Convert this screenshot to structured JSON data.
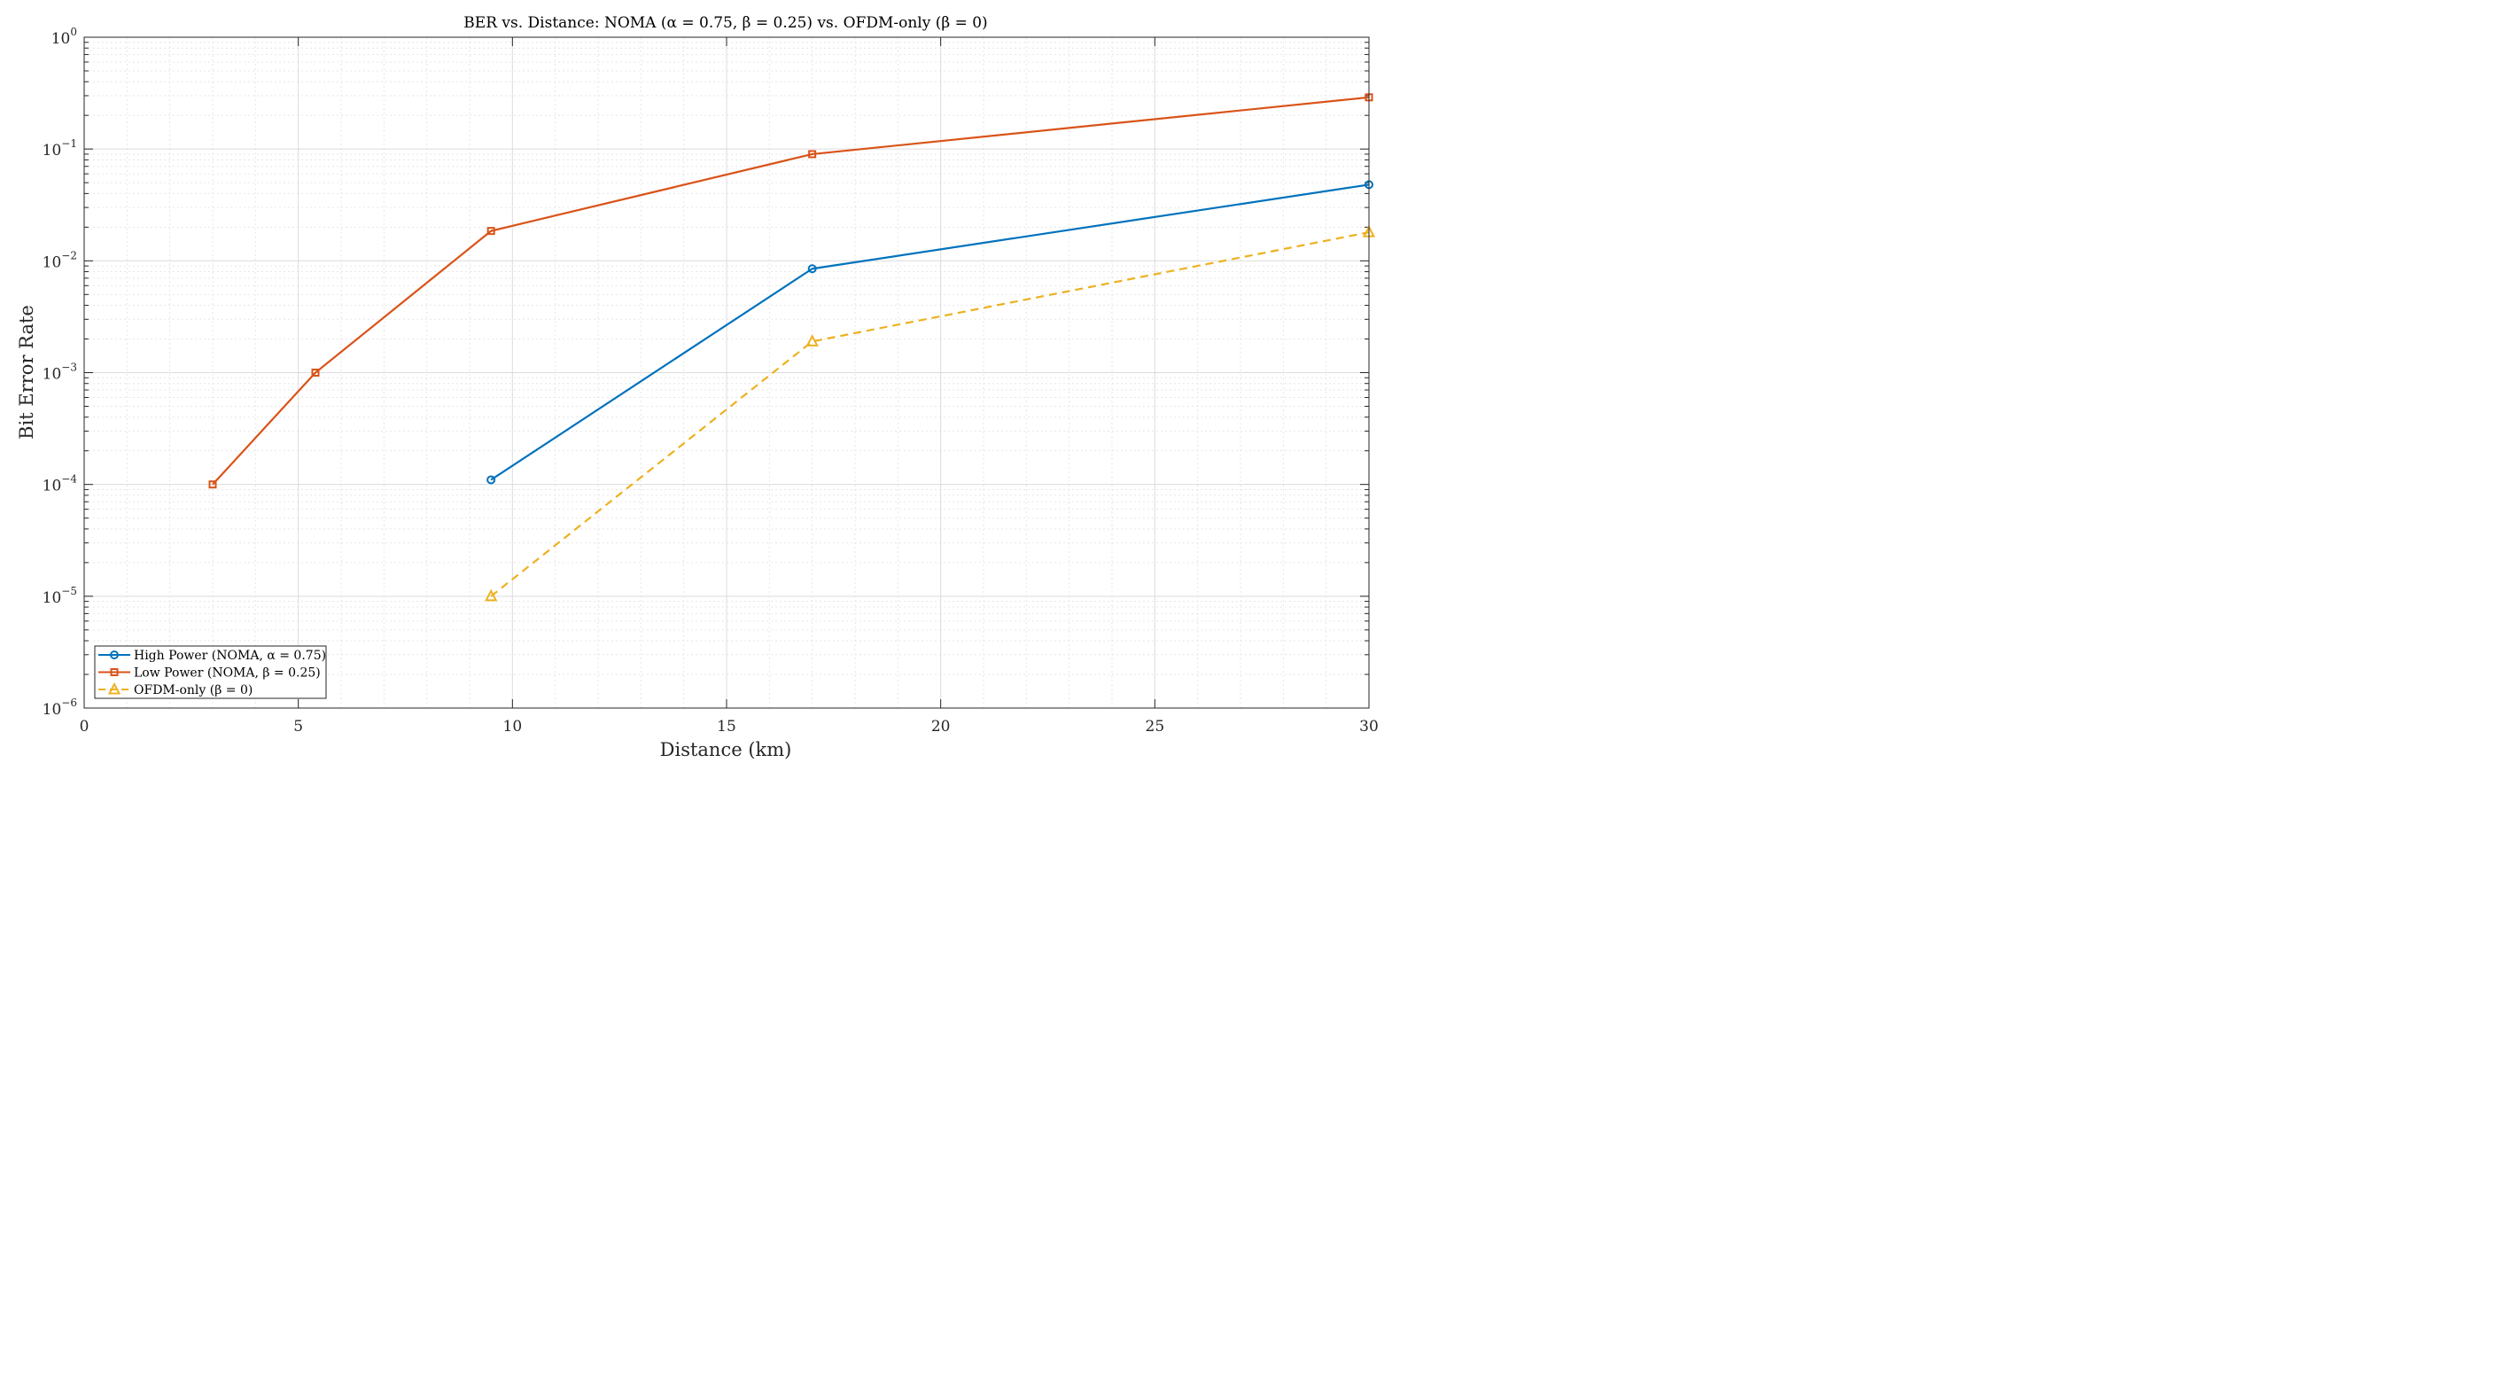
{
  "chart_data": {
    "type": "line",
    "title": "BER vs. Distance: NOMA (α = 0.75, β = 0.25) vs. OFDM-only (β = 0)",
    "xlabel": "Distance (km)",
    "ylabel": "Bit Error Rate",
    "xlim": [
      0,
      30
    ],
    "ylim": [
      1e-06,
      1
    ],
    "yscale": "log",
    "grid": true,
    "minor_grid": true,
    "legend_position": "bottom-left",
    "x_ticks": [
      {
        "value": 0,
        "label": "0"
      },
      {
        "value": 5,
        "label": "5"
      },
      {
        "value": 10,
        "label": "10"
      },
      {
        "value": 15,
        "label": "15"
      },
      {
        "value": 20,
        "label": "20"
      },
      {
        "value": 25,
        "label": "25"
      },
      {
        "value": 30,
        "label": "30"
      }
    ],
    "y_ticks": [
      {
        "value": 1,
        "base": "10",
        "exp": "0"
      },
      {
        "value": 0.1,
        "base": "10",
        "exp": "−1"
      },
      {
        "value": 0.01,
        "base": "10",
        "exp": "−2"
      },
      {
        "value": 0.001,
        "base": "10",
        "exp": "−3"
      },
      {
        "value": 0.0001,
        "base": "10",
        "exp": "−4"
      },
      {
        "value": 1e-05,
        "base": "10",
        "exp": "−5"
      },
      {
        "value": 1e-06,
        "base": "10",
        "exp": "−6"
      }
    ],
    "series": [
      {
        "name": "High Power (NOMA, α = 0.75)",
        "color": "#0072BD",
        "marker": "circle",
        "dash": "solid",
        "x": [
          9.5,
          17,
          30
        ],
        "y": [
          0.00011,
          0.0085,
          0.048
        ]
      },
      {
        "name": "Low Power (NOMA, β = 0.25)",
        "color": "#D95319",
        "marker": "square",
        "dash": "solid",
        "x": [
          3,
          5.4,
          9.5,
          17,
          30
        ],
        "y": [
          0.0001,
          0.001,
          0.0185,
          0.09,
          0.29
        ]
      },
      {
        "name": "OFDM-only (β = 0)",
        "color": "#EDB120",
        "marker": "triangle",
        "dash": "dashed",
        "x": [
          9.5,
          17,
          30
        ],
        "y": [
          1e-05,
          0.0019,
          0.018
        ]
      }
    ]
  }
}
